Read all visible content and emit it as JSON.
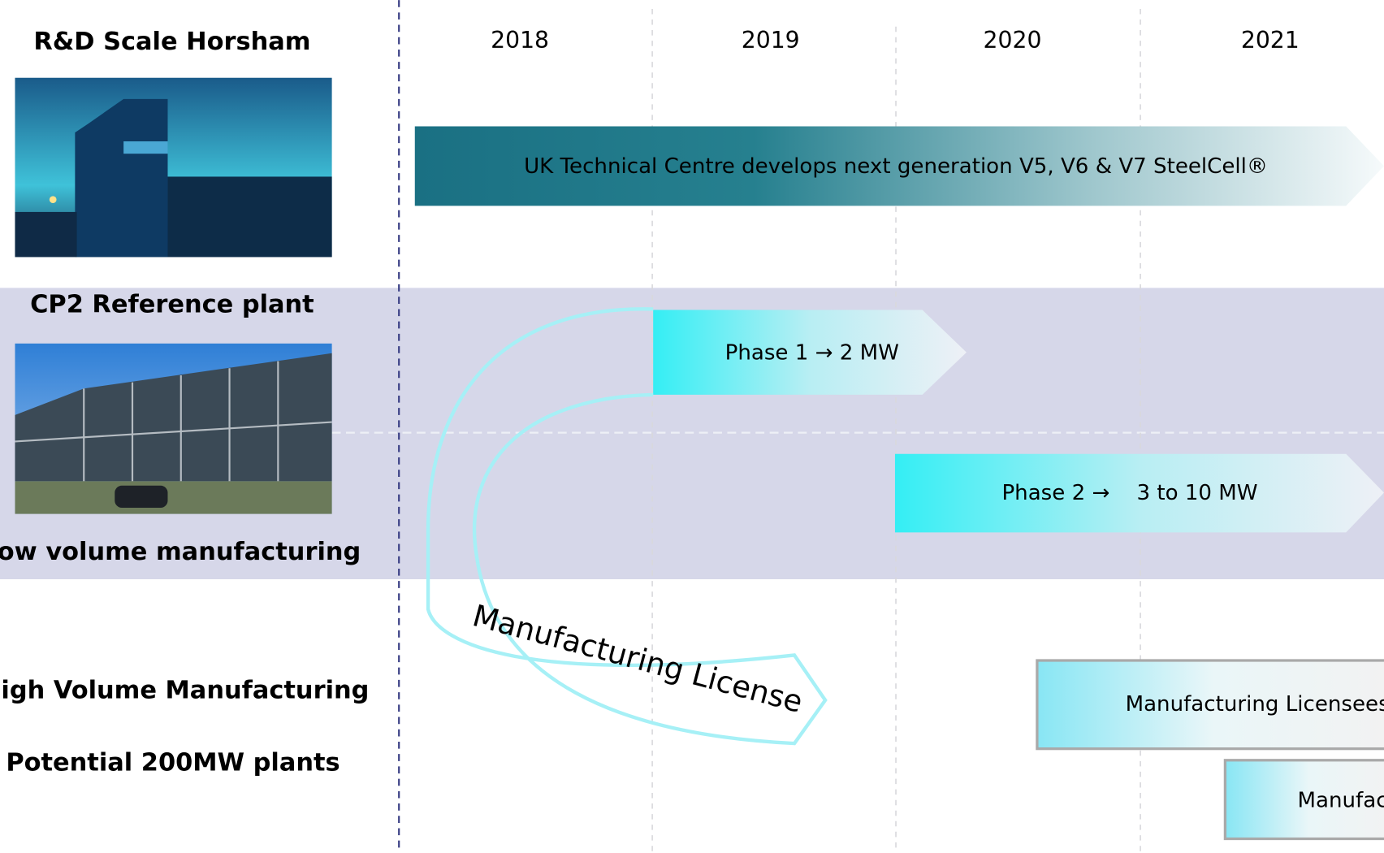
{
  "years": [
    "2018",
    "2019",
    "2020",
    "2021"
  ],
  "sections": [
    {
      "title": "R&D Scale Horsham"
    },
    {
      "title": "CP2 Reference plant",
      "subtitle": "Low volume manufacturing"
    },
    {
      "title": "High Volume Manufacturing",
      "subtitle": "Potential 200MW plants"
    }
  ],
  "bars": [
    {
      "label": "UK Technical Centre develops next generation V5, V6 & V7 SteelCell®"
    },
    {
      "label": "Phase 1 → 2 MW"
    },
    {
      "label": "Phase 2 →    3 to 10 MW"
    },
    {
      "label": "Manufacturing Licensees"
    },
    {
      "label": "Manufac"
    }
  ],
  "license_arrow": {
    "label": "Manufacturing License"
  }
}
